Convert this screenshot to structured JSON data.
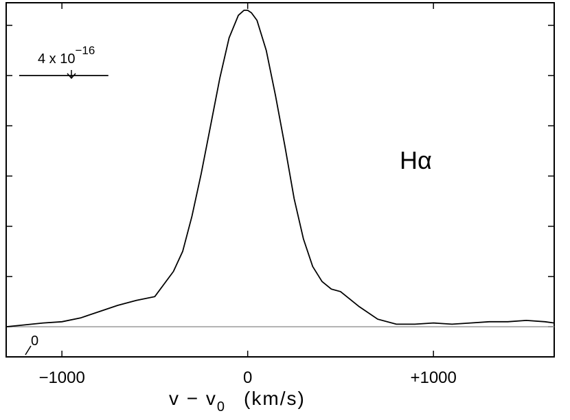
{
  "chart_data": {
    "type": "line",
    "xlabel_main": "v − v",
    "xlabel_sub": "0",
    "xlabel_units": "(km/s)",
    "line_label": "Hα",
    "xlim": [
      -1300,
      1650
    ],
    "ylim": [
      -1.2,
      12.9
    ],
    "xticks": [
      -1000,
      0,
      1000
    ],
    "xtick_labels": [
      "−1000",
      "0",
      "+1000"
    ],
    "yticks": [
      0,
      2,
      4,
      6,
      8,
      10,
      12
    ],
    "zero_label": "0",
    "scale_bar": {
      "label_base": "4 x 10",
      "label_exp": "−16",
      "value": 4,
      "y": 10,
      "x_start": -1230,
      "x_end": -750
    },
    "baseline": 0,
    "series": [
      {
        "x": [
          -1300,
          -1100,
          -1000,
          -900,
          -800,
          -700,
          -600,
          -500,
          -400,
          -350,
          -300,
          -250,
          -200,
          -150,
          -100,
          -50,
          -20,
          0,
          20,
          50,
          100,
          150,
          200,
          250,
          300,
          350,
          400,
          450,
          500,
          550,
          600,
          700,
          800,
          900,
          1000,
          1100,
          1200,
          1300,
          1400,
          1500,
          1600,
          1650
        ],
        "y": [
          0.0,
          0.15,
          0.2,
          0.35,
          0.6,
          0.85,
          1.05,
          1.2,
          2.2,
          3.0,
          4.4,
          6.1,
          8.0,
          9.9,
          11.5,
          12.4,
          12.6,
          12.6,
          12.5,
          12.2,
          11.0,
          9.2,
          7.2,
          5.1,
          3.5,
          2.4,
          1.8,
          1.5,
          1.4,
          1.1,
          0.8,
          0.3,
          0.1,
          0.1,
          0.15,
          0.1,
          0.15,
          0.2,
          0.2,
          0.25,
          0.2,
          0.15
        ]
      }
    ]
  }
}
